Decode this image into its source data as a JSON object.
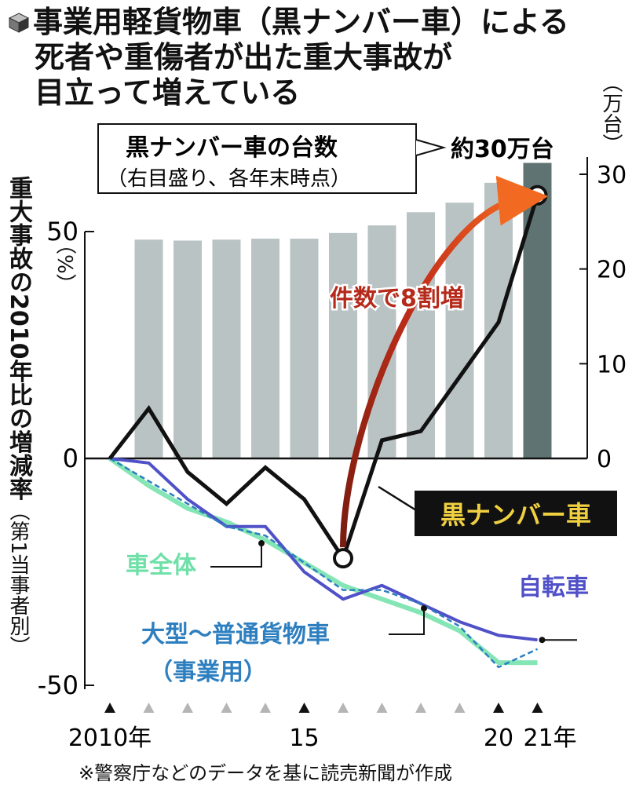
{
  "title": {
    "lines": [
      "事業用軽貨物車（黒ナンバー車）による",
      "死者や重傷者が出た重大事故が",
      "目立って増えている"
    ]
  },
  "footnote": "※警察庁などのデータを基に読売新聞が作成",
  "colors": {
    "bars": "#b9c3c3",
    "bar_highlight": "#5f7372",
    "black_plate": "#111111",
    "all_vehicles": "#6fe0a8",
    "bicycle": "#5050c8",
    "large_truck": "#2d7fc0",
    "growth_arrow": "#b52a1a",
    "growth_arrow_tip": "#f26a21",
    "black_label_text": "#f0d040"
  },
  "chart_data": {
    "type": "bar+line",
    "ylabel": "重大事故の2010年比の増減率",
    "ylabel_sub": "（第1当事者別）",
    "y_left_unit": "（%）",
    "y_left_ticks": [
      "50",
      "0",
      "-50"
    ],
    "ylim_left": [
      -50,
      50
    ],
    "y_right_unit": "（万台）",
    "y_right_ticks": [
      "30",
      "20",
      "10",
      "0"
    ],
    "ylim_right": [
      0,
      30
    ],
    "x": [
      2010,
      2011,
      2012,
      2013,
      2014,
      2015,
      2016,
      2017,
      2018,
      2019,
      2020,
      2021
    ],
    "x_tick_labels": [
      {
        "x": 2010,
        "label": "2010年"
      },
      {
        "x": 2015,
        "label": "15"
      },
      {
        "x": 2020,
        "label": "20"
      },
      {
        "x": 2021,
        "label": "21年"
      }
    ],
    "major_ticks": [
      2010,
      2015,
      2020,
      2021
    ],
    "bars": {
      "name": "黒ナンバー車の台数",
      "note": "（右目盛り、各年末時点）",
      "callout": "約30万台",
      "years": [
        2011,
        2012,
        2013,
        2014,
        2015,
        2016,
        2017,
        2018,
        2019,
        2020,
        2021
      ],
      "values": [
        23.1,
        23.0,
        23.1,
        23.2,
        23.2,
        23.8,
        24.6,
        26.0,
        27.0,
        29.1,
        31.2
      ]
    },
    "series": [
      {
        "name": "黒ナンバー車",
        "key": "black_plate",
        "values": [
          0,
          11,
          -3,
          -10,
          -2,
          -9,
          -22,
          4,
          6,
          18,
          30,
          58
        ]
      },
      {
        "name": "車全体",
        "key": "all_vehicles",
        "values": [
          0,
          -6,
          -11,
          -14,
          -18,
          -23,
          -28,
          -31,
          -34,
          -38,
          -45,
          -45
        ]
      },
      {
        "name": "自転車",
        "key": "bicycle",
        "values": [
          0,
          -1,
          -9,
          -15,
          -15,
          -25,
          -31,
          -28,
          -32,
          -36,
          -39,
          -40
        ]
      },
      {
        "name": "大型～普通貨物車",
        "name2": "（事業用）",
        "key": "large_truck",
        "values": [
          0,
          -5,
          -10,
          -15,
          -17,
          -23,
          -29,
          -29,
          -32,
          -37,
          -46,
          -42
        ]
      }
    ],
    "annotation": "件数で8割増"
  }
}
